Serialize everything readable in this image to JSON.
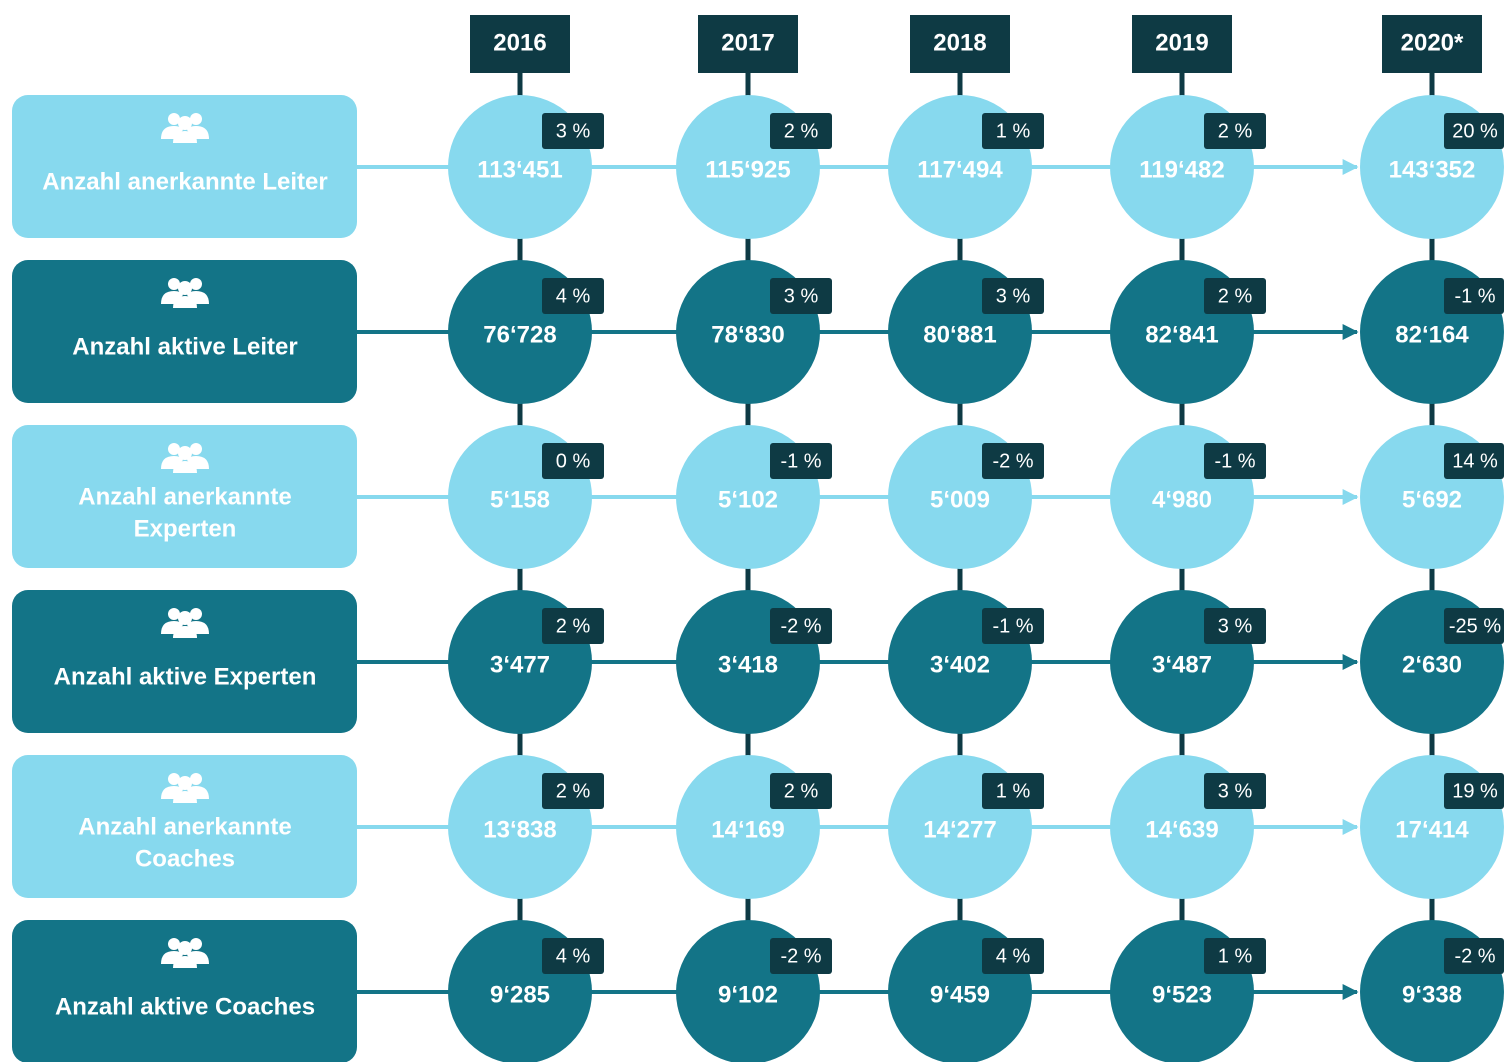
{
  "years": [
    "2016",
    "2017",
    "2018",
    "2019",
    "2020*"
  ],
  "rows": [
    {
      "label": [
        "Anzahl anerkannte Leiter"
      ],
      "values": [
        "113‘451",
        "115‘925",
        "117‘494",
        "119‘482",
        "143‘352"
      ],
      "changes": [
        "3 %",
        "2 %",
        "1 %",
        "2 %",
        "20 %"
      ]
    },
    {
      "label": [
        "Anzahl aktive Leiter"
      ],
      "values": [
        "76‘728",
        "78‘830",
        "80‘881",
        "82‘841",
        "82‘164"
      ],
      "changes": [
        "4 %",
        "3 %",
        "3 %",
        "2 %",
        "-1 %"
      ]
    },
    {
      "label": [
        "Anzahl anerkannte",
        "Experten"
      ],
      "values": [
        "5‘158",
        "5‘102",
        "5‘009",
        "4‘980",
        "5‘692"
      ],
      "changes": [
        "0 %",
        "-1 %",
        "-2 %",
        "-1 %",
        "14 %"
      ]
    },
    {
      "label": [
        "Anzahl aktive Experten"
      ],
      "values": [
        "3‘477",
        "3‘418",
        "3‘402",
        "3‘487",
        "2‘630"
      ],
      "changes": [
        "2 %",
        "-2 %",
        "-1 %",
        "3 %",
        "-25 %"
      ]
    },
    {
      "label": [
        "Anzahl anerkannte",
        "Coaches"
      ],
      "values": [
        "13‘838",
        "14‘169",
        "14‘277",
        "14‘639",
        "17‘414"
      ],
      "changes": [
        "2 %",
        "2 %",
        "1 %",
        "3 %",
        "19 %"
      ]
    },
    {
      "label": [
        "Anzahl aktive Coaches"
      ],
      "values": [
        "9‘285",
        "9‘102",
        "9‘459",
        "9‘523",
        "9‘338"
      ],
      "changes": [
        "4 %",
        "-2 %",
        "4 %",
        "1 %",
        "-2 %"
      ]
    }
  ]
}
